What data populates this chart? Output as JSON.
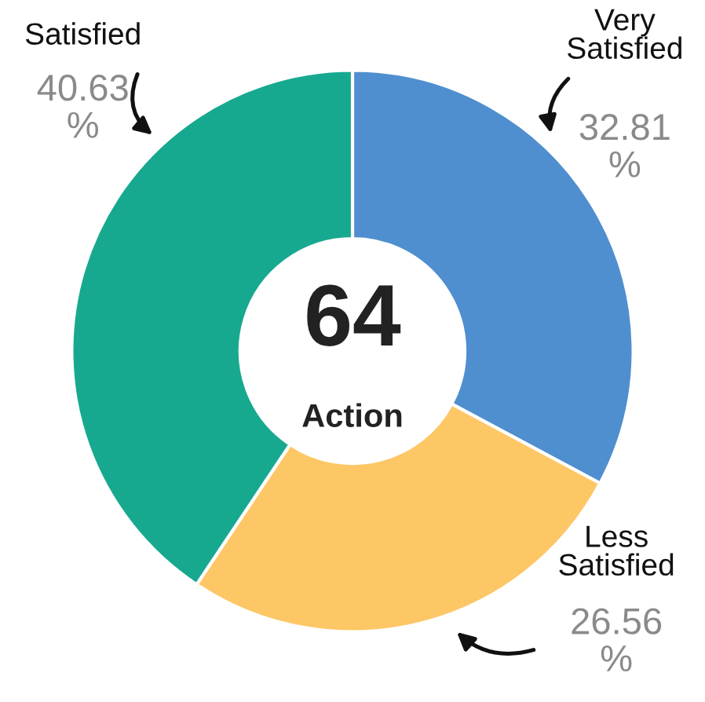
{
  "chart_data": {
    "type": "donut",
    "categories": [
      "Very\nSatisfied",
      "Less\nSatisfied",
      "Satisfied"
    ],
    "values": [
      32.81,
      26.56,
      40.63
    ],
    "colors": [
      "#4f8fcf",
      "#fdc766",
      "#17a98f"
    ],
    "value_labels": [
      "32.81\n%",
      "26.56\n%",
      "40.63\n%"
    ],
    "annotations": [
      "64",
      "Action"
    ],
    "legend": false
  }
}
